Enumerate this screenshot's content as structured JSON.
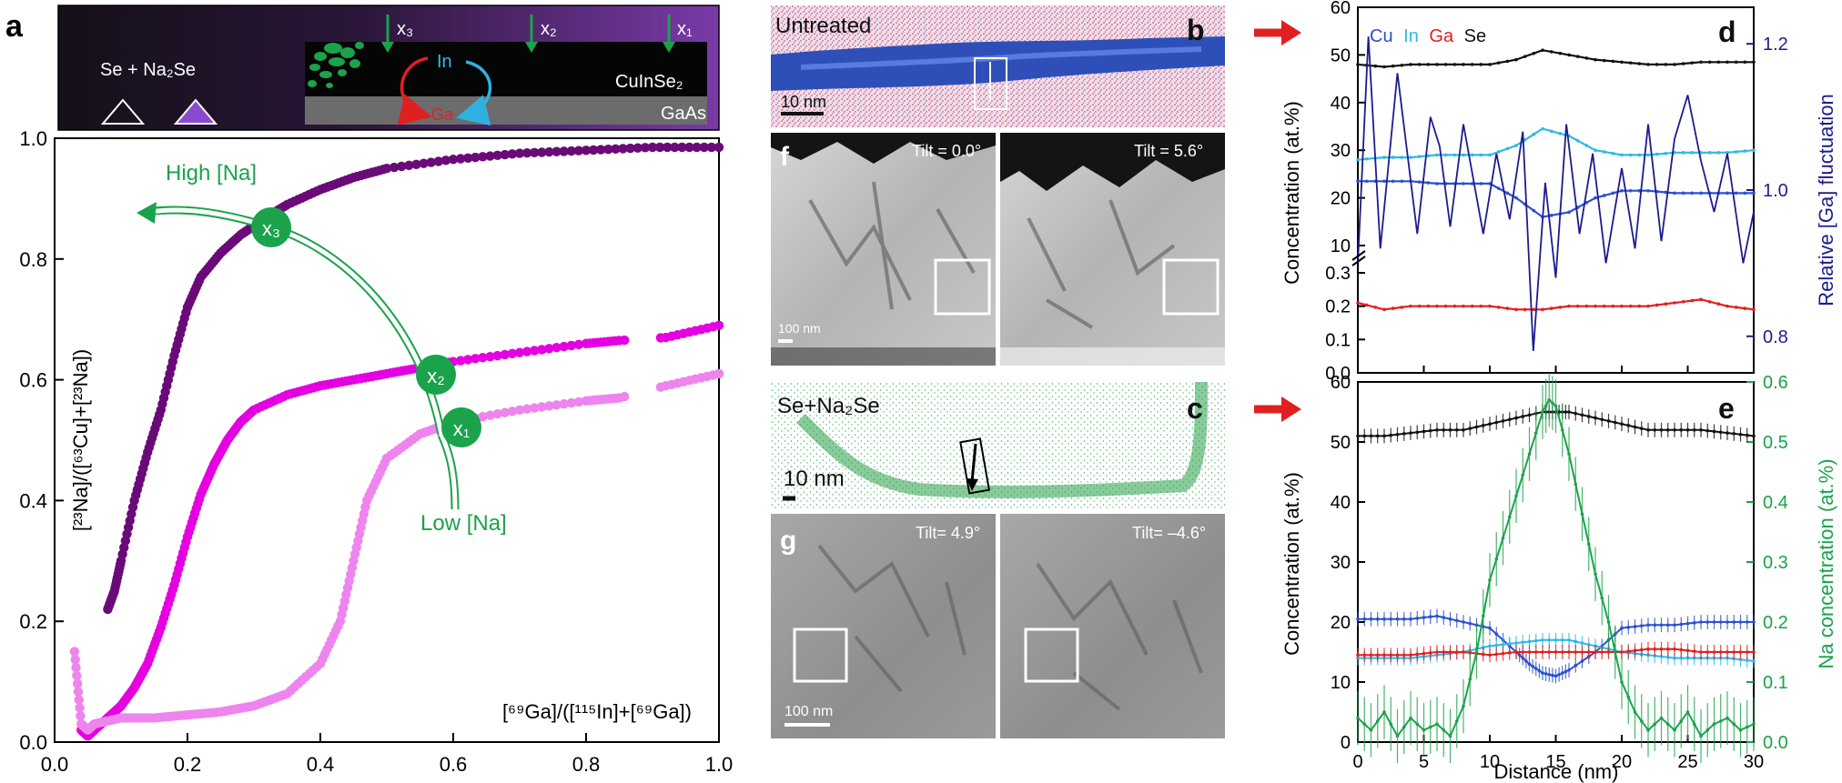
{
  "panel_letters": {
    "a": "a",
    "b": "b",
    "c": "c",
    "d": "d",
    "e": "e",
    "f": "f",
    "g": "g"
  },
  "schematic": {
    "legend_label": "Se + Na₂Se",
    "x_labels": [
      "x₃",
      "x₂",
      "x₁"
    ],
    "in_label": "In",
    "ga_label": "Ga",
    "layer_top": "CuInSe₂",
    "layer_bottom": "GaAs"
  },
  "panel_b": {
    "label": "Untreated",
    "scale": "10 nm"
  },
  "panel_c": {
    "label": "Se+Na₂Se",
    "scale": "10 nm"
  },
  "panel_f": {
    "tilt_left": "Tilt = 0.0°",
    "tilt_right": "Tilt = 5.6°",
    "scale": "100 nm"
  },
  "panel_g": {
    "tilt_left": "Tilt= 4.9°",
    "tilt_right": "Tilt= –4.6°",
    "scale": "100 nm"
  },
  "panel_d": {
    "legend": [
      "Cu",
      "In",
      "Ga",
      "Se"
    ],
    "ylabel_left": "Concentration (at.%)",
    "ylabel_right": "Relative [Ga] fluctuation",
    "yticks_upper": [
      "60",
      "50",
      "40",
      "30",
      "20",
      "10"
    ],
    "yticks_lower": [
      "0.3",
      "0.2",
      "0.1",
      "0.0"
    ],
    "yticks_right": [
      "1.2",
      "1.0",
      "0.8"
    ]
  },
  "panel_e": {
    "ylabel_left": "Concentration (at.%)",
    "ylabel_right": "Na concentration (at.%)",
    "yticks_left": [
      "60",
      "50",
      "40",
      "30",
      "20",
      "10",
      "0"
    ],
    "yticks_right": [
      "0.6",
      "0.5",
      "0.4",
      "0.3",
      "0.2",
      "0.1",
      "0.0"
    ],
    "xlabel": "Distance (nm)",
    "xticks": [
      "0",
      "5",
      "10",
      "15",
      "20",
      "25",
      "30"
    ]
  },
  "colors": {
    "purple": "#6a0a78",
    "magenta": "#e400e0",
    "pink": "#ee84ee",
    "green": "#1aa34a",
    "cu": "#2a50d0",
    "in": "#30b8e8",
    "ga": "#e02020",
    "se": "#111111",
    "navy": "#1c1c8e"
  },
  "chart_data": [
    {
      "id": "panel-a",
      "type": "scatter",
      "xlim": [
        0,
        1
      ],
      "ylim": [
        0,
        1
      ],
      "xticks": [
        "0.0",
        "0.2",
        "0.4",
        "0.6",
        "0.8",
        "1.0"
      ],
      "yticks": [
        "0.0",
        "0.2",
        "0.4",
        "0.6",
        "0.8",
        "1.0"
      ],
      "ylabel": "[²³Na]/([⁶³Cu]+[²³Na])",
      "xlabel_annotation": "[⁶⁹Ga]/([¹¹⁵In]+[⁶⁹Ga])",
      "annotations": {
        "high": "High [Na]",
        "low": "Low [Na]",
        "markers": [
          "x₃",
          "x₂",
          "x₁"
        ]
      },
      "series": [
        {
          "x": [
            0.08,
            0.09,
            0.1,
            0.12,
            0.14,
            0.16,
            0.18,
            0.2,
            0.22,
            0.25,
            0.28,
            0.3,
            0.32,
            0.35,
            0.4,
            0.45,
            0.5,
            0.6,
            0.7,
            0.8,
            0.9,
            1.0
          ],
          "y": [
            0.22,
            0.25,
            0.3,
            0.4,
            0.48,
            0.55,
            0.64,
            0.72,
            0.77,
            0.81,
            0.84,
            0.855,
            0.87,
            0.89,
            0.915,
            0.935,
            0.95,
            0.965,
            0.975,
            0.98,
            0.985,
            0.985
          ]
        },
        {
          "x": [
            0.04,
            0.05,
            0.06,
            0.08,
            0.1,
            0.12,
            0.14,
            0.16,
            0.18,
            0.2,
            0.22,
            0.24,
            0.26,
            0.28,
            0.3,
            0.35,
            0.4,
            0.45,
            0.5,
            0.55,
            0.6,
            0.7,
            0.8,
            0.85,
            0.92,
            1.0
          ],
          "y": [
            0.02,
            0.01,
            0.02,
            0.04,
            0.06,
            0.09,
            0.13,
            0.19,
            0.26,
            0.34,
            0.41,
            0.46,
            0.5,
            0.53,
            0.55,
            0.575,
            0.59,
            0.6,
            0.61,
            0.62,
            0.63,
            0.645,
            0.66,
            0.665,
            0.67,
            0.69
          ]
        },
        {
          "x": [
            0.03,
            0.04,
            0.05,
            0.06,
            0.1,
            0.15,
            0.2,
            0.25,
            0.3,
            0.35,
            0.4,
            0.43,
            0.45,
            0.47,
            0.5,
            0.55,
            0.6,
            0.7,
            0.8,
            0.85,
            0.92,
            1.0
          ],
          "y": [
            0.15,
            0.03,
            0.02,
            0.03,
            0.04,
            0.04,
            0.045,
            0.05,
            0.06,
            0.08,
            0.13,
            0.2,
            0.3,
            0.4,
            0.47,
            0.51,
            0.53,
            0.55,
            0.565,
            0.57,
            0.59,
            0.61
          ]
        }
      ]
    },
    {
      "id": "panel-d",
      "type": "line",
      "xlim": [
        0,
        30
      ],
      "series": [
        {
          "name": "Se",
          "x": [
            0,
            2,
            4,
            6,
            8,
            10,
            12,
            14,
            16,
            18,
            20,
            22,
            24,
            26,
            28,
            30
          ],
          "y": [
            48,
            47.5,
            48,
            48,
            48,
            48,
            49,
            51,
            50,
            49,
            48.5,
            48,
            48,
            48.5,
            48.5,
            48.5
          ]
        },
        {
          "name": "In",
          "x": [
            0,
            2,
            4,
            6,
            8,
            10,
            12,
            14,
            16,
            18,
            20,
            22,
            24,
            26,
            28,
            30
          ],
          "y": [
            28,
            28.5,
            28.5,
            29,
            29,
            29,
            31,
            34.5,
            33,
            30,
            29,
            29,
            29.5,
            29.5,
            29.5,
            30
          ]
        },
        {
          "name": "Cu",
          "x": [
            0,
            2,
            4,
            6,
            8,
            10,
            12,
            14,
            16,
            18,
            20,
            22,
            24,
            26,
            28,
            30
          ],
          "y": [
            23.5,
            23.5,
            23.5,
            23,
            23,
            23,
            20,
            16,
            17,
            20,
            21.5,
            21.5,
            21,
            21,
            21,
            21
          ]
        },
        {
          "name": "Ga",
          "x": [
            0,
            2,
            4,
            6,
            8,
            10,
            12,
            14,
            16,
            18,
            20,
            22,
            24,
            26,
            28,
            30
          ],
          "y": [
            0.21,
            0.19,
            0.2,
            0.2,
            0.2,
            0.2,
            0.19,
            0.19,
            0.2,
            0.2,
            0.2,
            0.2,
            0.21,
            0.22,
            0.2,
            0.19
          ]
        },
        {
          "name": "Relative [Ga] fluctuation",
          "x": [
            0,
            0.8,
            1.7,
            3,
            4.5,
            5.5,
            6.2,
            7,
            8,
            9.5,
            10.5,
            11.5,
            12.5,
            13.3,
            14.2,
            15,
            15.8,
            16.8,
            17.8,
            18.8,
            20,
            21,
            22,
            23,
            24,
            25,
            26,
            27,
            28,
            29.2,
            30
          ],
          "y": [
            0.9,
            1.21,
            0.92,
            1.16,
            0.94,
            1.1,
            1.06,
            0.95,
            1.09,
            0.94,
            1.05,
            0.96,
            1.08,
            0.78,
            1.01,
            0.88,
            1.09,
            0.94,
            1.05,
            0.9,
            1.03,
            0.92,
            1.09,
            0.93,
            1.07,
            1.13,
            1.04,
            0.97,
            1.05,
            0.9,
            0.97
          ]
        }
      ]
    },
    {
      "id": "panel-e",
      "type": "line",
      "xlim": [
        0,
        30
      ],
      "series": [
        {
          "name": "Se",
          "x": [
            0,
            2,
            4,
            6,
            8,
            10,
            12,
            14,
            15,
            16,
            18,
            20,
            22,
            24,
            26,
            28,
            30
          ],
          "y": [
            51,
            51,
            51.5,
            52,
            52,
            53,
            54,
            55,
            55,
            55,
            54,
            53,
            52,
            52,
            52,
            51.5,
            51
          ]
        },
        {
          "name": "Cu",
          "x": [
            0,
            2,
            4,
            6,
            8,
            10,
            12,
            13,
            14,
            15,
            16,
            18,
            20,
            22,
            24,
            26,
            28,
            30
          ],
          "y": [
            20.5,
            20.5,
            20.5,
            21,
            20,
            19,
            15,
            13,
            11.5,
            11,
            12,
            15,
            19,
            19.5,
            19.5,
            20,
            20,
            20
          ]
        },
        {
          "name": "In",
          "x": [
            0,
            2,
            4,
            6,
            8,
            10,
            12,
            14,
            16,
            18,
            20,
            22,
            24,
            26,
            28,
            30
          ],
          "y": [
            14,
            14,
            14,
            14.5,
            15,
            16,
            16.5,
            17,
            17,
            16,
            15,
            14.5,
            14,
            14,
            14,
            13.5
          ]
        },
        {
          "name": "Ga",
          "x": [
            0,
            2,
            4,
            6,
            8,
            10,
            12,
            14,
            16,
            18,
            20,
            22,
            24,
            26,
            28,
            30
          ],
          "y": [
            14.5,
            14.5,
            14.5,
            15,
            15,
            14.5,
            15,
            15,
            15,
            15,
            15,
            15.5,
            15.5,
            15,
            15,
            15
          ]
        },
        {
          "name": "Na",
          "x": [
            0,
            1,
            2,
            3,
            4,
            5,
            6,
            7,
            8,
            9,
            10,
            11,
            12,
            13,
            14,
            14.5,
            15,
            16,
            17,
            18,
            19,
            20,
            21,
            22,
            23,
            24,
            25,
            26,
            27,
            28,
            29,
            30
          ],
          "y": [
            0.04,
            0.02,
            0.05,
            0.01,
            0.04,
            0.02,
            0.03,
            0.01,
            0.06,
            0.15,
            0.27,
            0.34,
            0.41,
            0.48,
            0.55,
            0.57,
            0.56,
            0.48,
            0.38,
            0.28,
            0.2,
            0.1,
            0.05,
            0.02,
            0.04,
            0.02,
            0.05,
            0.01,
            0.03,
            0.04,
            0.02,
            0.03
          ]
        }
      ]
    }
  ]
}
